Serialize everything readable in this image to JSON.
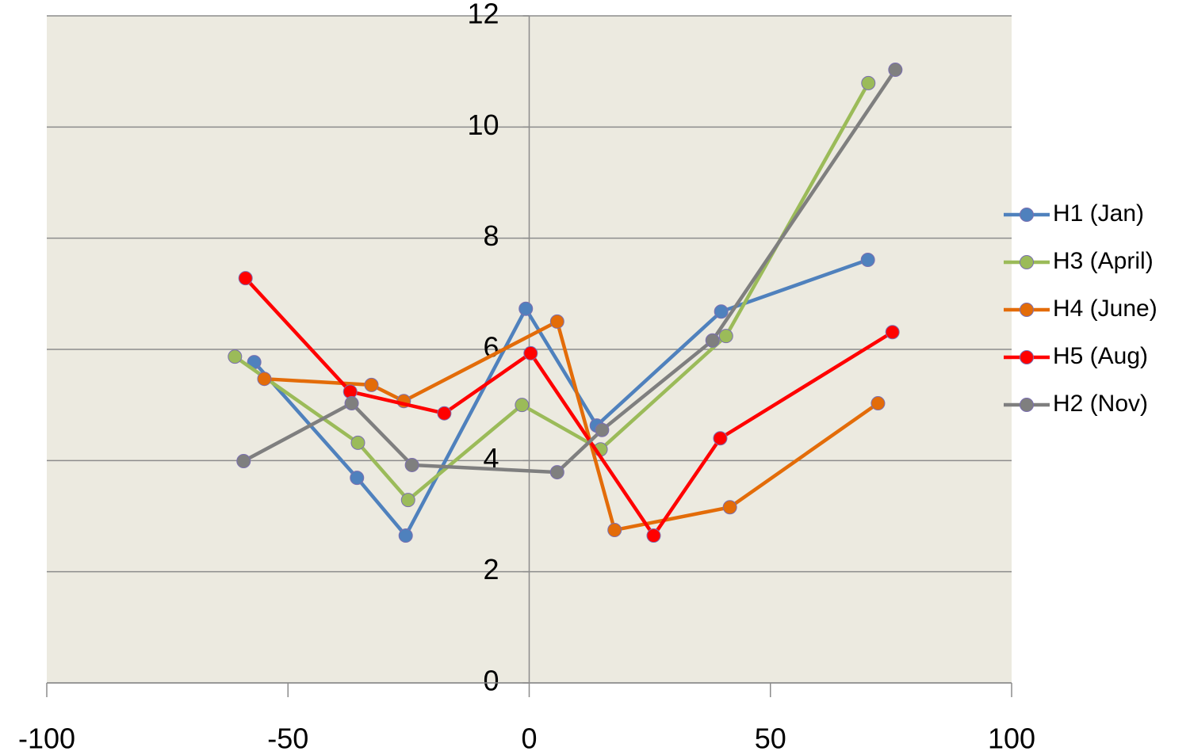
{
  "chart_data": {
    "type": "line",
    "xlim": [
      -100,
      100
    ],
    "xticks": [
      -100,
      -50,
      0,
      50,
      100
    ],
    "ylim": [
      0,
      12
    ],
    "yticks": [
      0,
      2,
      4,
      6,
      8,
      10,
      12
    ],
    "grid": true,
    "legend": "right",
    "series": [
      {
        "name": "H1 (Jan)",
        "color": "#4f81bd",
        "x": [
          -57.0,
          -35.7,
          -25.6,
          -0.7,
          14.0,
          39.8,
          70.2
        ],
        "values": [
          5.77,
          3.69,
          2.65,
          6.73,
          4.63,
          6.68,
          7.61
        ]
      },
      {
        "name": "H3 (April)",
        "color": "#9bbb59",
        "x": [
          -61.0,
          -35.5,
          -25.1,
          -1.5,
          14.8,
          40.8,
          70.3
        ],
        "values": [
          5.87,
          4.32,
          3.29,
          5.0,
          4.2,
          6.24,
          10.79
        ]
      },
      {
        "name": "H4 (June)",
        "color": "#e36c09",
        "x": [
          -54.9,
          -32.7,
          -26.0,
          5.8,
          17.7,
          41.6,
          72.3
        ],
        "values": [
          5.47,
          5.36,
          5.07,
          6.5,
          2.75,
          3.16,
          5.03
        ]
      },
      {
        "name": "H5 (Aug)",
        "color": "#ff0000",
        "x": [
          -58.8,
          -37.1,
          -17.6,
          0.3,
          25.8,
          39.6,
          75.3
        ],
        "values": [
          7.28,
          5.24,
          4.85,
          5.93,
          2.65,
          4.4,
          6.31
        ]
      },
      {
        "name": "H2 (Nov)",
        "color": "#7f7f7f",
        "x": [
          -59.2,
          -36.8,
          -24.3,
          5.8,
          15.1,
          38.0,
          75.9
        ],
        "values": [
          3.99,
          5.03,
          3.92,
          3.79,
          4.55,
          6.16,
          11.03
        ]
      }
    ]
  }
}
